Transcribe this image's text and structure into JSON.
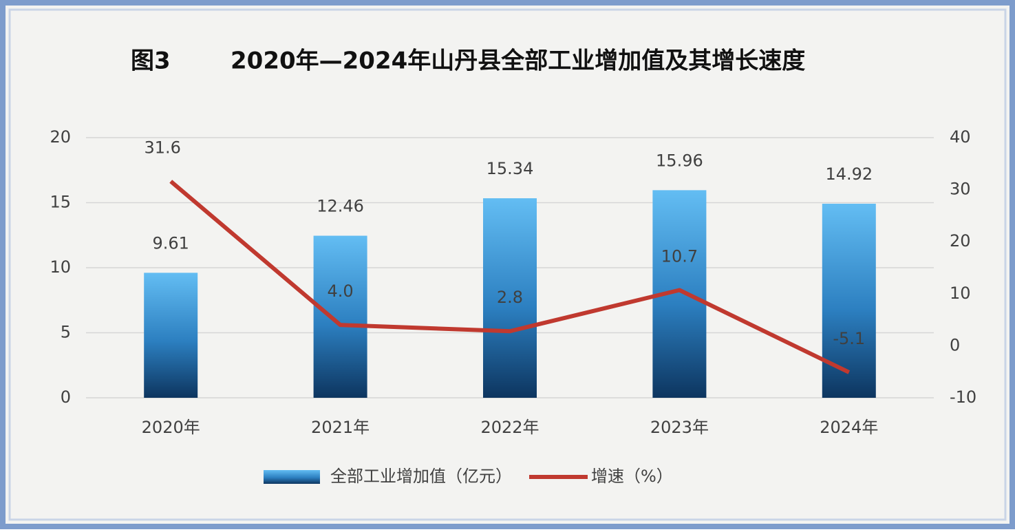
{
  "chart_data": {
    "type": "combo",
    "figure_label": "图3",
    "title": "2020年—2024年山丹县全部工业增加值及其增长速度",
    "categories": [
      "2020年",
      "2021年",
      "2022年",
      "2023年",
      "2024年"
    ],
    "series": [
      {
        "name": "全部工业增加值（亿元）",
        "type": "bar",
        "color": "#3a8fd0",
        "values": [
          9.61,
          12.46,
          15.34,
          15.96,
          14.92
        ]
      },
      {
        "name": "增速（%）",
        "type": "line",
        "axis": "y2",
        "color": "#c0392f",
        "values": [
          31.6,
          4.0,
          2.8,
          10.7,
          -5.1
        ],
        "value_labels": [
          "31.6",
          "4.0",
          "2.8",
          "10.7",
          "-5.1"
        ]
      }
    ],
    "ylim": [
      0,
      20
    ],
    "yticks": [
      0,
      5,
      10,
      15,
      20
    ],
    "y2lim": [
      -10,
      40
    ],
    "y2ticks": [
      -10,
      0,
      10,
      20,
      30,
      40
    ],
    "grid": true,
    "legend": "bottom"
  }
}
